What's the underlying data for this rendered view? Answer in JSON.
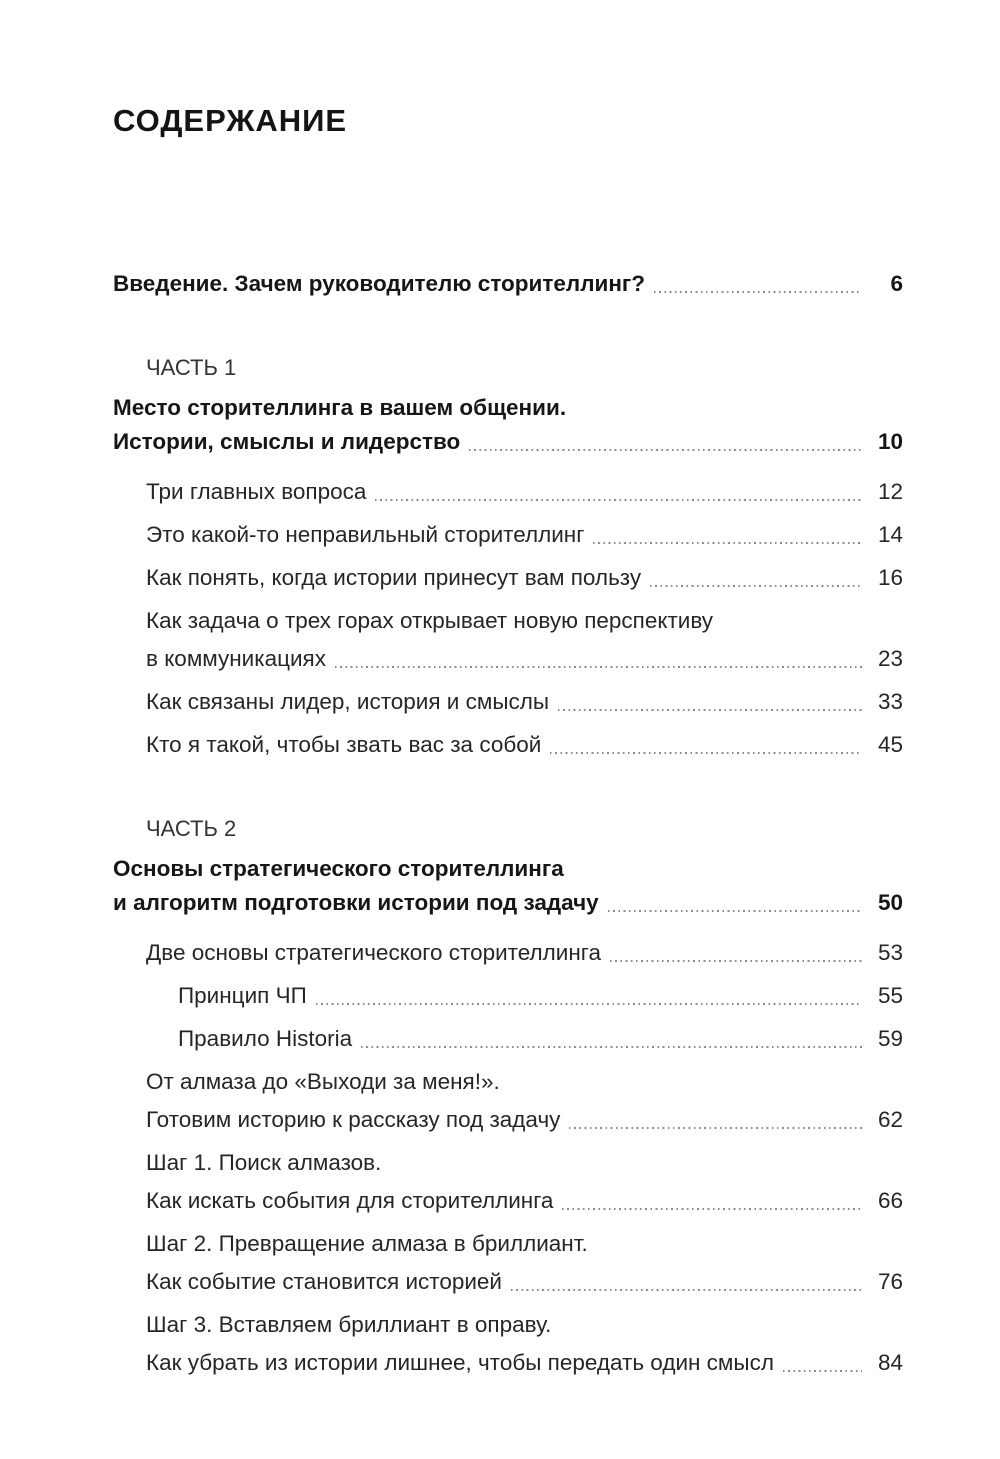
{
  "page": {
    "title": "СОДЕРЖАНИЕ"
  },
  "toc": {
    "entries": [
      {
        "type": "intro",
        "lines": [
          "Введение. Зачем руководителю сторителлинг?"
        ],
        "page": "6"
      },
      {
        "type": "part",
        "label": "ЧАСТЬ 1"
      },
      {
        "type": "section",
        "lines": [
          "Место сторителлинга в вашем общении.",
          "Истории, смыслы и лидерство"
        ],
        "page": "10"
      },
      {
        "type": "item",
        "lines": [
          "Три главных вопроса"
        ],
        "page": "12"
      },
      {
        "type": "item",
        "lines": [
          "Это какой-то неправильный сторителлинг"
        ],
        "page": "14"
      },
      {
        "type": "item",
        "lines": [
          "Как понять, когда истории принесут вам пользу"
        ],
        "page": "16"
      },
      {
        "type": "item",
        "lines": [
          "Как задача о трех горах открывает новую перспективу",
          "в коммуникациях"
        ],
        "page": "23"
      },
      {
        "type": "item",
        "lines": [
          "Как связаны лидер, история и смыслы"
        ],
        "page": "33"
      },
      {
        "type": "item",
        "lines": [
          "Кто я такой, чтобы звать вас за собой"
        ],
        "page": "45"
      },
      {
        "type": "part",
        "label": "ЧАСТЬ 2"
      },
      {
        "type": "section",
        "lines": [
          "Основы стратегического сторителлинга",
          "и алгоритм подготовки истории под задачу"
        ],
        "page": "50"
      },
      {
        "type": "item",
        "lines": [
          "Две основы стратегического сторителлинга"
        ],
        "page": "53"
      },
      {
        "type": "sub",
        "lines": [
          "Принцип ЧП"
        ],
        "page": "55"
      },
      {
        "type": "sub",
        "lines": [
          "Правило Historia"
        ],
        "page": "59"
      },
      {
        "type": "item",
        "lines": [
          "От алмаза до «Выходи за меня!».",
          "Готовим историю к рассказу под задачу"
        ],
        "page": "62"
      },
      {
        "type": "item",
        "lines": [
          "Шаг 1. Поиск алмазов.",
          "Как искать события для сторителлинга"
        ],
        "page": "66"
      },
      {
        "type": "item",
        "lines": [
          "Шаг 2. Превращение алмаза в бриллиант.",
          "Как событие становится историей"
        ],
        "page": "76"
      },
      {
        "type": "item",
        "lines": [
          "Шаг 3. Вставляем бриллиант в оправу.",
          "Как убрать из истории лишнее, чтобы передать один смысл"
        ],
        "page": "84"
      }
    ]
  }
}
